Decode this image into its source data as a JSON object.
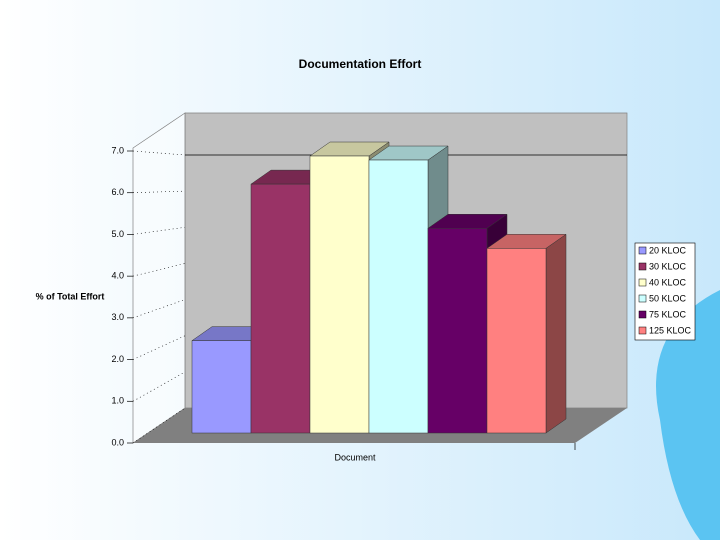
{
  "chart_data": {
    "type": "bar3d",
    "title": "Documentation Effort",
    "y_label": "% of Total Effort",
    "categories": [
      "Document"
    ],
    "series": [
      {
        "name": "20 KLOC",
        "color": "#9999ff",
        "values": [
          2.3
        ]
      },
      {
        "name": "30 KLOC",
        "color": "#993366",
        "values": [
          6.2
        ]
      },
      {
        "name": "40 KLOC",
        "color": "#ffffcc",
        "values": [
          6.9
        ]
      },
      {
        "name": "50 KLOC",
        "color": "#ccffff",
        "values": [
          6.8
        ]
      },
      {
        "name": "75 KLOC",
        "color": "#660066",
        "values": [
          5.1
        ]
      },
      {
        "name": "125 KLOC",
        "color": "#ff8080",
        "values": [
          4.6
        ]
      }
    ],
    "ylim": [
      0,
      7
    ],
    "yticks": [
      {
        "value": 0,
        "label": "0.0"
      },
      {
        "value": 1,
        "label": "1.0"
      },
      {
        "value": 2,
        "label": "2.0"
      },
      {
        "value": 3,
        "label": "3.0"
      },
      {
        "value": 4,
        "label": "4.0"
      },
      {
        "value": 5,
        "label": "5.0"
      },
      {
        "value": 6,
        "label": "6.0"
      },
      {
        "value": 7,
        "label": "7.0"
      }
    ],
    "legend": "right"
  }
}
